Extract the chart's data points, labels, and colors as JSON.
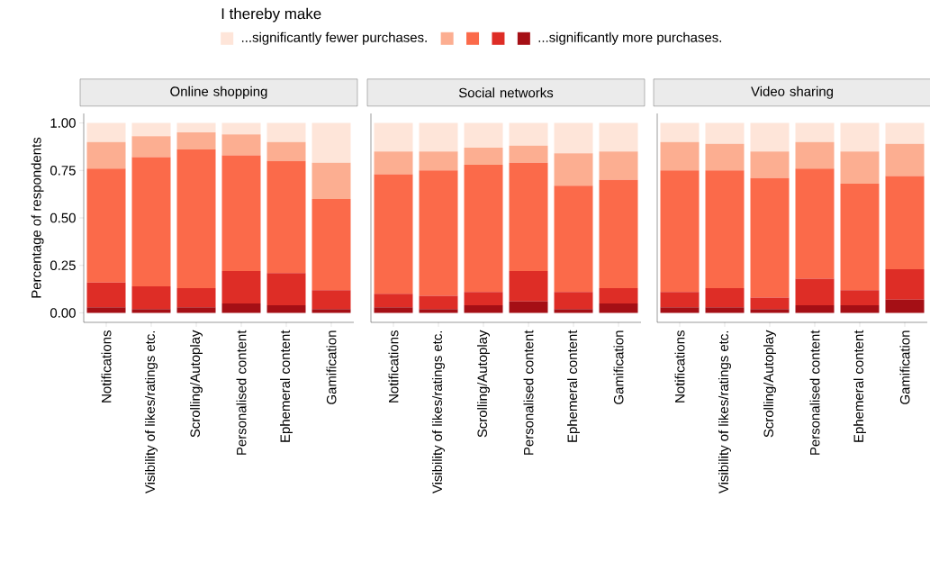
{
  "chart_data": [
    {
      "type": "bar",
      "title": "Online shopping",
      "ylabel": "Percentage of respondents",
      "legend_title": "I thereby make",
      "legend": "top",
      "stacked": true,
      "categories": [
        "Notifications",
        "Visibility of likes/ratings etc.",
        "Scrolling/Autoplay",
        "Personalised content",
        "Ephemeral content",
        "Gamification"
      ],
      "ylim": [
        -0.05,
        1.05
      ],
      "yticks": [
        {
          "value": 0,
          "label": "0.00"
        },
        {
          "value": 0.25,
          "label": "0.25"
        },
        {
          "value": 0.5,
          "label": "0.50"
        },
        {
          "value": 0.75,
          "label": "0.75"
        },
        {
          "value": 1,
          "label": "1.00"
        }
      ],
      "series": [
        {
          "name": "...significantly more purchases.",
          "color": "#a50f15",
          "values": [
            0.03,
            0.02,
            0.03,
            0.05,
            0.04,
            0.02
          ]
        },
        {
          "color": "#de2d26",
          "values": [
            0.13,
            0.12,
            0.1,
            0.17,
            0.17,
            0.1
          ]
        },
        {
          "color": "#fb6a4a",
          "values": [
            0.6,
            0.68,
            0.73,
            0.61,
            0.59,
            0.48
          ]
        },
        {
          "color": "#fcae91",
          "values": [
            0.14,
            0.11,
            0.09,
            0.11,
            0.1,
            0.19
          ]
        },
        {
          "name": "...significantly fewer purchases.",
          "color": "#fee5d9",
          "values": [
            0.1,
            0.07,
            0.05,
            0.06,
            0.1,
            0.21
          ]
        }
      ]
    },
    {
      "type": "bar",
      "title": "Social networks",
      "stacked": true,
      "tick_labels": "x",
      "categories": [
        "Notifications",
        "Visibility of likes/ratings etc.",
        "Scrolling/Autoplay",
        "Personalised content",
        "Ephemeral content",
        "Gamification"
      ],
      "ylim": [
        -0.05,
        1.05
      ],
      "series": [
        {
          "color": "#a50f15",
          "values": [
            0.03,
            0.02,
            0.04,
            0.06,
            0.02,
            0.05
          ]
        },
        {
          "color": "#de2d26",
          "values": [
            0.07,
            0.07,
            0.07,
            0.16,
            0.09,
            0.08
          ]
        },
        {
          "color": "#fb6a4a",
          "values": [
            0.63,
            0.66,
            0.67,
            0.57,
            0.56,
            0.57
          ]
        },
        {
          "color": "#fcae91",
          "values": [
            0.12,
            0.1,
            0.09,
            0.09,
            0.17,
            0.15
          ]
        },
        {
          "color": "#fee5d9",
          "values": [
            0.15,
            0.15,
            0.13,
            0.12,
            0.16,
            0.15
          ]
        }
      ]
    },
    {
      "type": "bar",
      "title": "Video sharing",
      "stacked": true,
      "tick_labels": "x",
      "categories": [
        "Notifications",
        "Visibility of likes/ratings etc.",
        "Scrolling/Autoplay",
        "Personalised content",
        "Ephemeral content",
        "Gamification"
      ],
      "ylim": [
        -0.05,
        1.05
      ],
      "series": [
        {
          "color": "#a50f15",
          "values": [
            0.03,
            0.03,
            0.02,
            0.04,
            0.04,
            0.07
          ]
        },
        {
          "color": "#de2d26",
          "values": [
            0.08,
            0.1,
            0.06,
            0.14,
            0.08,
            0.16
          ]
        },
        {
          "color": "#fb6a4a",
          "values": [
            0.64,
            0.62,
            0.63,
            0.58,
            0.56,
            0.49
          ]
        },
        {
          "color": "#fcae91",
          "values": [
            0.15,
            0.14,
            0.14,
            0.14,
            0.17,
            0.17
          ]
        },
        {
          "color": "#fee5d9",
          "values": [
            0.1,
            0.11,
            0.15,
            0.1,
            0.15,
            0.11
          ]
        }
      ]
    }
  ]
}
